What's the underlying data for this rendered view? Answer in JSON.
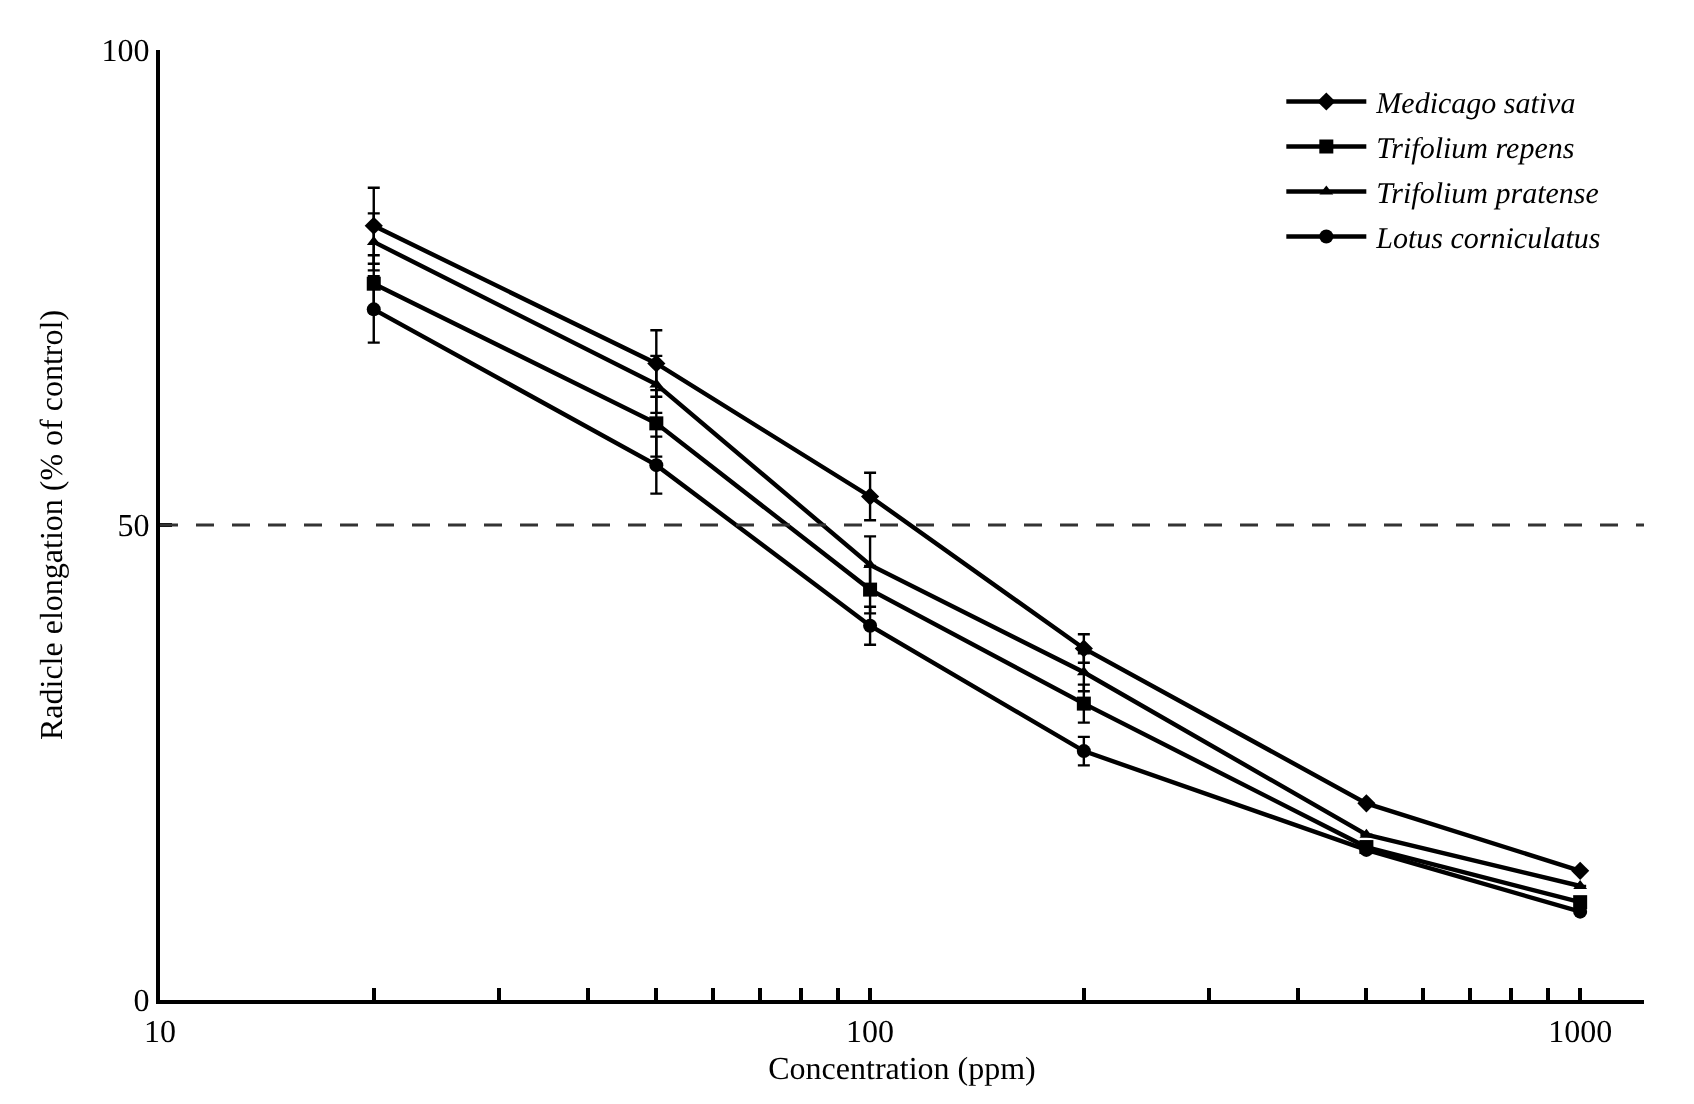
{
  "chart_data": {
    "type": "line",
    "xlabel": "Concentration (ppm)",
    "ylabel": "Radicle elongation (% of control)",
    "x": [
      20,
      50,
      100,
      200,
      500,
      1000
    ],
    "series": [
      {
        "name": "Medicago sativa",
        "color": "#000000",
        "marker": "diamond",
        "values": [
          81.5,
          67,
          53,
          37,
          20.7,
          13.6
        ],
        "errors": [
          4,
          3.5,
          2.5,
          1.5,
          null,
          null
        ]
      },
      {
        "name": "Trifolium repens",
        "color": "#000000",
        "marker": "square",
        "values": [
          75.4,
          60.7,
          43.2,
          31.2,
          16.1,
          10.3
        ],
        "errors": [
          3,
          3.5,
          2.5,
          2,
          null,
          null
        ]
      },
      {
        "name": "Trifolium pratense",
        "color": "#000000",
        "marker": "triangle",
        "values": [
          79.8,
          64.8,
          45.8,
          34.5,
          17.4,
          12.0
        ],
        "errors": [
          3,
          3,
          3,
          2,
          null,
          null
        ]
      },
      {
        "name": "Lotus corniculatus",
        "color": "#000000",
        "marker": "circle",
        "values": [
          72.7,
          56.3,
          39.4,
          26.2,
          15.8,
          9.3
        ],
        "errors": [
          3.5,
          3,
          2,
          1.5,
          null,
          null
        ]
      }
    ],
    "log": "x",
    "xlim": [
      10,
      1230
    ],
    "xticks": [
      10,
      {
        "value": 20,
        "label": null
      },
      {
        "value": 30,
        "label": null
      },
      {
        "value": 40,
        "label": null
      },
      {
        "value": 50,
        "label": null
      },
      {
        "value": 60,
        "label": null
      },
      {
        "value": 70,
        "label": null
      },
      {
        "value": 80,
        "label": null
      },
      {
        "value": 90,
        "label": null
      },
      100,
      {
        "value": 200,
        "label": null
      },
      {
        "value": 300,
        "label": null
      },
      {
        "value": 400,
        "label": null
      },
      {
        "value": 500,
        "label": null
      },
      {
        "value": 600,
        "label": null
      },
      {
        "value": 700,
        "label": null
      },
      {
        "value": 800,
        "label": null
      },
      {
        "value": 900,
        "label": null
      },
      1000
    ],
    "ylim": [
      0,
      100
    ],
    "yticks": [
      0,
      50,
      100
    ],
    "ref_lines": [
      {
        "axis": "y",
        "value": 50,
        "color": "#333333",
        "line_style": "dashed"
      }
    ],
    "legend": "top right",
    "line_style": "solid"
  }
}
